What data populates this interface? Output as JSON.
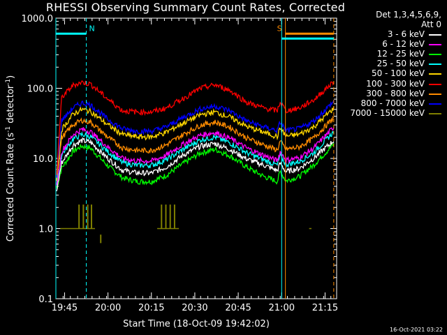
{
  "chart_data": {
    "type": "line",
    "title": "RHESSI Observing Summary Count Rates, Corrected",
    "xlabel": "Start Time (18-Oct-09 19:42:02)",
    "ylabel_main": "Corrected Count Rate (s",
    "ylabel_sup1": "-1",
    "ylabel_mid": " detector",
    "ylabel_sup2": "-1",
    "ylabel_end": ")",
    "y_scale": "log",
    "ylim": [
      0.1,
      1000
    ],
    "xlim_minutes": [
      0,
      97
    ],
    "x_ticks": [
      {
        "label": "19:45",
        "minute": 3
      },
      {
        "label": "20:00",
        "minute": 18
      },
      {
        "label": "20:15",
        "minute": 33
      },
      {
        "label": "20:30",
        "minute": 48
      },
      {
        "label": "20:45",
        "minute": 63
      },
      {
        "label": "21:00",
        "minute": 78
      },
      {
        "label": "21:15",
        "minute": 93
      }
    ],
    "y_ticks": [
      "0.1",
      "1.0",
      "10.0",
      "100.0",
      "1000.0"
    ],
    "legend_header": [
      "Det 1,3,4,5,6,9,",
      "Att 0"
    ],
    "series": [
      {
        "name": "3 - 6 keV",
        "color": "#ffffff",
        "key": [
          3,
          8.7,
          15.6,
          18,
          17,
          10,
          6.8,
          6.2,
          6.2,
          7.5,
          11.2,
          15,
          16.3,
          13.5,
          9.8,
          8,
          6.7,
          8.5,
          6.5,
          7.2,
          10,
          18
        ]
      },
      {
        "name": "6 - 12 keV",
        "color": "#ff00ff",
        "key": [
          3.2,
          12.6,
          22,
          26,
          24,
          14.5,
          10,
          9.2,
          9.2,
          11,
          16,
          21.5,
          23.5,
          19.5,
          14,
          11,
          9.3,
          12.5,
          9.5,
          10.2,
          14,
          28
        ]
      },
      {
        "name": "12 - 25 keV",
        "color": "#00ff00",
        "key": [
          3.4,
          7.3,
          12.7,
          15,
          14,
          7.8,
          5.3,
          4.7,
          4.7,
          5.7,
          8.5,
          12,
          13.5,
          11,
          7.5,
          5.5,
          4.7,
          6.5,
          4.8,
          5.5,
          8,
          16
        ]
      },
      {
        "name": "25 - 50 keV",
        "color": "#00ffff",
        "key": [
          3.6,
          11.3,
          19,
          22,
          20.5,
          12.5,
          8.7,
          8,
          8,
          9.5,
          13.5,
          18.5,
          20.2,
          16.8,
          12,
          9.5,
          8,
          11,
          8.2,
          9,
          12,
          24
        ]
      },
      {
        "name": "50 - 100 keV",
        "color": "#ffd700",
        "key": [
          3.8,
          25.8,
          43,
          50,
          47,
          30,
          22,
          20.3,
          20.3,
          23.5,
          32,
          42,
          46,
          39,
          28.5,
          23.5,
          20.5,
          27,
          20.8,
          22,
          28,
          52
        ]
      },
      {
        "name": "100 - 300 keV",
        "color": "#ff0000",
        "key": [
          4,
          74,
          111,
          122,
          115,
          70,
          48,
          46,
          46,
          52,
          72,
          100,
          112,
          94,
          63,
          52,
          48,
          64,
          48,
          52,
          68,
          125
        ]
      },
      {
        "name": "300 - 800 keV",
        "color": "#ff8c00",
        "key": [
          4.2,
          19.7,
          30.5,
          35,
          33,
          20,
          14.2,
          13,
          13,
          15.5,
          22,
          30,
          33,
          28,
          19.5,
          15.5,
          13.2,
          17.5,
          13.5,
          14.5,
          19.5,
          38
        ]
      },
      {
        "name": "800 - 7000 keV",
        "color": "#0000ff",
        "key": [
          4.4,
          34.8,
          53,
          62,
          58,
          36,
          26.5,
          24.5,
          24.5,
          28,
          38.5,
          51,
          56,
          48,
          34,
          28,
          25,
          33,
          25,
          26.5,
          34,
          65
        ]
      },
      {
        "name": "7000 - 15000 keV",
        "color": "#808000",
        "key_note": "sparse spikes",
        "baseline": 1.0,
        "spikes": [
          [
            8,
            2.2
          ],
          [
            9.5,
            2.2
          ],
          [
            11,
            2.2
          ],
          [
            12.3,
            2.2
          ],
          [
            36.5,
            2.2
          ],
          [
            38,
            2.2
          ],
          [
            39.5,
            2.2
          ],
          [
            41,
            2.2
          ]
        ]
      }
    ],
    "key_minutes": [
      0,
      2,
      6,
      9,
      12,
      18,
      23,
      28,
      33,
      38,
      44,
      50,
      55,
      60,
      66,
      72,
      76.5,
      77.5,
      79.5,
      84,
      89,
      96
    ],
    "annotations": [
      {
        "label": "N",
        "color": "#00ffff",
        "bar": [
          0,
          10.5
        ],
        "bar_y": 600,
        "dashed_at": 10.5
      },
      {
        "label": "S",
        "color": "#ff8c00",
        "bar": [
          79.3,
          96
        ],
        "bar_y": 600
      }
    ],
    "vertical_lines": [
      {
        "minute": 0,
        "color": "#00ffff",
        "style": "solid"
      },
      {
        "minute": 10.5,
        "color": "#00ffff",
        "style": "dashed"
      },
      {
        "minute": 78,
        "color": "#00ffff",
        "style": "solid"
      },
      {
        "minute": 79.3,
        "color": "#ff8c00",
        "style": "solid"
      },
      {
        "minute": 96,
        "color": "#ff8c00",
        "style": "dashed"
      }
    ],
    "grid": false,
    "legend_position": "right"
  },
  "footer": {
    "timestamp": "16-Oct-2021 03:22"
  }
}
